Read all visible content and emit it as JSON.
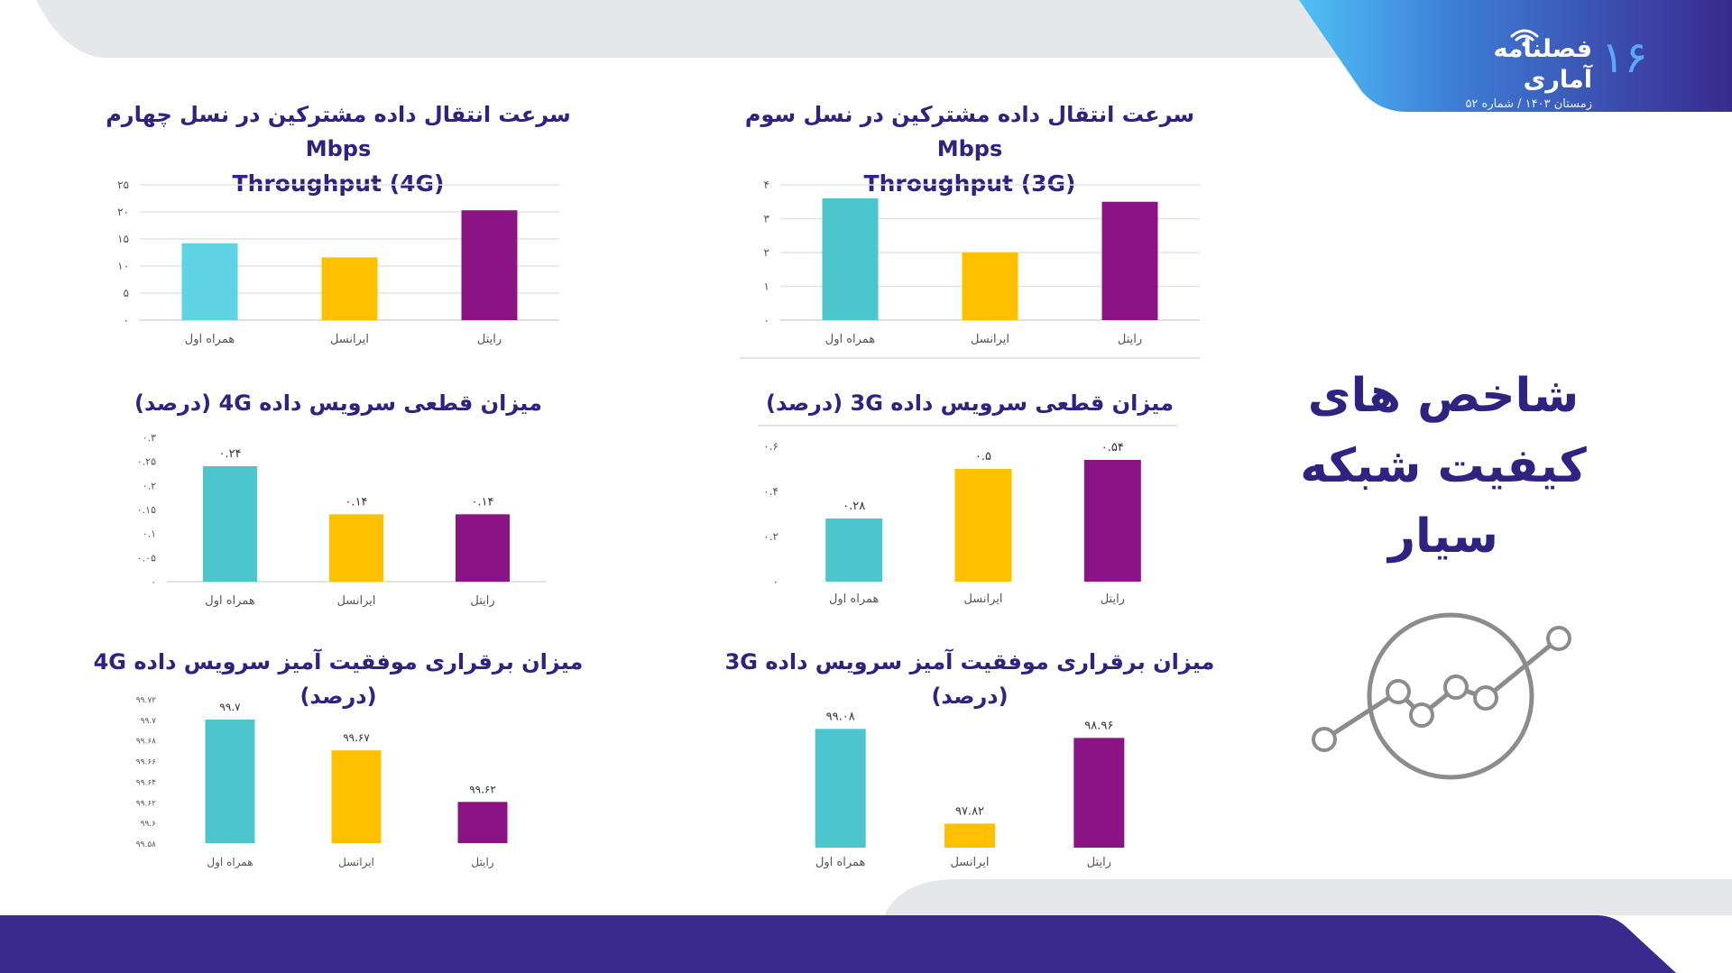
{
  "header": {
    "brand_title": "فصلنامه آماری",
    "brand_subtitle": "زمستان ۱۴۰۳ / شماره ۵۲",
    "page_number": "۱۶"
  },
  "main_title": {
    "line1": "شاخص های",
    "line2": "کیفیت شبکه",
    "line3": "سیار"
  },
  "colors": {
    "primary": "#2f2382",
    "hamrahe_aval": "#4cc6cc",
    "irancell": "#ffc000",
    "rightel": "#8b1485",
    "footer": "#3a2a8f",
    "header_grad_start": "#4fc0f5",
    "header_grad_end": "#3c2b95"
  },
  "chart_data": [
    {
      "type": "bar",
      "title_line1": "سرعت انتقال داده مشترکین در نسل سوم Mbps",
      "title_line2": "Throughput (3G)",
      "categories": [
        "همراه اول",
        "ایرانسل",
        "رایتل"
      ],
      "values": [
        3.6,
        2.0,
        3.5
      ],
      "ylim": [
        0,
        4
      ],
      "ytick_labels": [
        "۰",
        "۱",
        "۲",
        "۳",
        "۴"
      ],
      "data_labels": [],
      "grid": true,
      "colors": [
        "#4cc6cc",
        "#ffc000",
        "#8b1485"
      ]
    },
    {
      "type": "bar",
      "title_line1": "سرعت انتقال داده مشترکین در نسل چهارم Mbps",
      "title_line2": "Throughput (4G)",
      "categories": [
        "همراه اول",
        "ایرانسل",
        "رایتل"
      ],
      "values": [
        14.2,
        11.6,
        20.3
      ],
      "ylim": [
        0,
        25
      ],
      "ytick_labels": [
        "۰",
        "۵",
        "۱۰",
        "۱۵",
        "۲۰",
        "۲۵"
      ],
      "data_labels": [],
      "grid": true,
      "colors": [
        "#5ed3e3",
        "#ffc000",
        "#8b1485"
      ]
    },
    {
      "type": "bar",
      "title_line1": "میزان قطعی سرویس داده 3G (درصد)",
      "categories": [
        "همراه اول",
        "ایرانسل",
        "رایتل"
      ],
      "values": [
        0.28,
        0.5,
        0.54
      ],
      "ylim": [
        0,
        0.6
      ],
      "ytick_labels": [
        "۰",
        "۰.۲",
        "۰.۴",
        "۰.۶"
      ],
      "data_labels": [
        "۰.۲۸",
        "۰.۵",
        "۰.۵۴"
      ],
      "grid": false,
      "colors": [
        "#4cc6cc",
        "#ffc000",
        "#8b1485"
      ]
    },
    {
      "type": "bar",
      "title_line1": "میزان قطعی سرویس داده 4G (درصد)",
      "categories": [
        "همراه اول",
        "ایرانسل",
        "رایتل"
      ],
      "values": [
        0.24,
        0.14,
        0.14
      ],
      "ylim": [
        0,
        0.3
      ],
      "ytick_labels": [
        "۰",
        "۰.۰۵",
        "۰.۱",
        "۰.۱۵",
        "۰.۲",
        "۰.۲۵",
        "۰.۳"
      ],
      "data_labels": [
        "۰.۲۴",
        "۰.۱۴",
        "۰.۱۴"
      ],
      "grid": false,
      "colors": [
        "#4cc6cc",
        "#ffc000",
        "#8b1485"
      ]
    },
    {
      "type": "bar",
      "title_line1": "میزان برقراری موفقیت آمیز سرویس داده 3G (درصد)",
      "categories": [
        "همراه اول",
        "ایرانسل",
        "رایتل"
      ],
      "values": [
        99.08,
        97.82,
        98.96
      ],
      "ylim": [
        97.5,
        99.3
      ],
      "ytick_labels": [],
      "data_labels": [
        "۹۹.۰۸",
        "۹۷.۸۲",
        "۹۸.۹۶"
      ],
      "grid": false,
      "colors": [
        "#4cc6cc",
        "#ffc000",
        "#8b1485"
      ]
    },
    {
      "type": "bar",
      "title_line1": "میزان برقراری موفقیت آمیز سرویس داده 4G (درصد)",
      "categories": [
        "همراه اول",
        "ایرانسل",
        "رایتل"
      ],
      "values": [
        99.7,
        99.67,
        99.62
      ],
      "ylim": [
        99.58,
        99.72
      ],
      "ytick_labels": [
        "۹۹.۵۸",
        "۹۹.۶",
        "۹۹.۶۲",
        "۹۹.۶۴",
        "۹۹.۶۶",
        "۹۹.۶۸",
        "۹۹.۷",
        "۹۹.۷۲"
      ],
      "data_labels": [
        "۹۹.۷",
        "۹۹.۶۷",
        "۹۹.۶۲"
      ],
      "grid": false,
      "colors": [
        "#4cc6cc",
        "#ffc000",
        "#8b1485"
      ]
    }
  ]
}
